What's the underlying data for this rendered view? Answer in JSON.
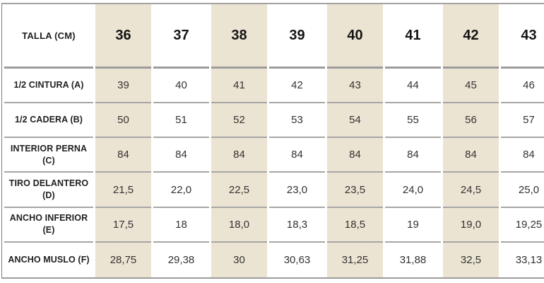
{
  "chart_data": {
    "type": "table",
    "corner_label": "TALLA (CM)",
    "columns": [
      "36",
      "37",
      "38",
      "39",
      "40",
      "41",
      "42",
      "43"
    ],
    "rows": [
      {
        "label": "1/2 CINTURA (A)",
        "values": [
          "39",
          "40",
          "41",
          "42",
          "43",
          "44",
          "45",
          "46"
        ]
      },
      {
        "label": "1/2 CADERA (B)",
        "values": [
          "50",
          "51",
          "52",
          "53",
          "54",
          "55",
          "56",
          "57"
        ]
      },
      {
        "label": "INTERIOR PERNA (C)",
        "values": [
          "84",
          "84",
          "84",
          "84",
          "84",
          "84",
          "84",
          "84"
        ]
      },
      {
        "label": "TIRO DELANTERO (D)",
        "values": [
          "21,5",
          "22,0",
          "22,5",
          "23,0",
          "23,5",
          "24,0",
          "24,5",
          "25,0"
        ]
      },
      {
        "label": "ANCHO INFERIOR (E)",
        "values": [
          "17,5",
          "18",
          "18,0",
          "18,3",
          "18,5",
          "19",
          "19,0",
          "19,25"
        ]
      },
      {
        "label": "ANCHO MUSLO (F)",
        "values": [
          "28,75",
          "29,38",
          "30",
          "30,63",
          "31,25",
          "31,88",
          "32,5",
          "33,13"
        ]
      }
    ],
    "highlighted_column_indices": [
      0,
      2,
      4,
      6
    ],
    "layout": {
      "highlight_color": "#ECE4D2",
      "separator_color": "#A6A6A6",
      "border_color": "#7D7D7D",
      "header_text_color": "#151515",
      "body_text_color": "#333333",
      "grid": "horizontal-only",
      "units": "cm"
    }
  }
}
